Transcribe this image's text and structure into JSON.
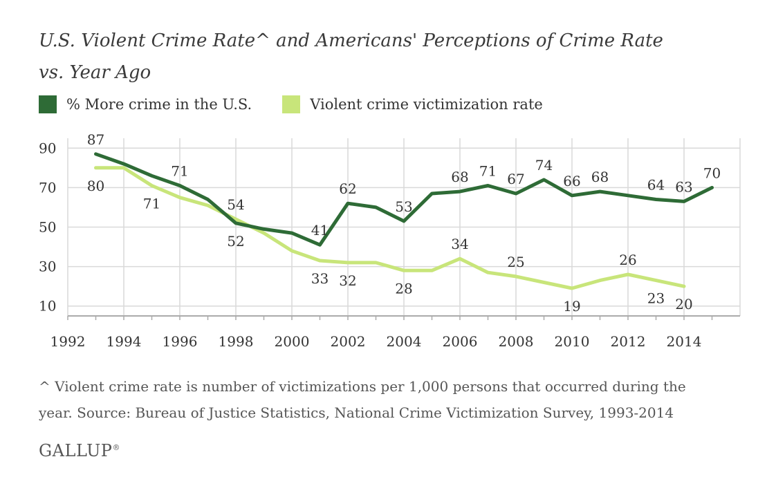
{
  "title_line1": "U.S. Violent Crime Rate^ and Americans' Perceptions of Crime Rate",
  "title_line2": "vs. Year Ago",
  "footnote_line1": "^ Violent crime rate is number of victimizations per 1,000 persons that occurred during the",
  "footnote_line2": "year. Source: Bureau of Justice Statistics, National Crime Victimization Survey, 1993-2014",
  "logo": "GALLUP",
  "logo_mark": "®",
  "colors": {
    "dark_green": "#2e6b36",
    "light_green": "#c8e57a",
    "grid": "#d9d9d9",
    "text": "#333333"
  },
  "chart_data": {
    "type": "line",
    "xlim": [
      1992,
      2016
    ],
    "ylim": [
      5,
      95
    ],
    "x_ticks": [
      "1992",
      "1994",
      "1996",
      "1998",
      "2000",
      "2002",
      "2004",
      "2006",
      "2008",
      "2010",
      "2012",
      "2014"
    ],
    "y_ticks": [
      "10",
      "30",
      "50",
      "70",
      "90"
    ],
    "grid": true,
    "legend_position": "top-left",
    "series": [
      {
        "name": "% More crime in the U.S.",
        "color": "#2e6b36",
        "points": [
          [
            1993,
            87
          ],
          [
            1994,
            82
          ],
          [
            1995,
            76
          ],
          [
            1996,
            71
          ],
          [
            1997,
            64
          ],
          [
            1998,
            52
          ],
          [
            1999,
            49
          ],
          [
            2000,
            47
          ],
          [
            2001,
            41
          ],
          [
            2002,
            62
          ],
          [
            2003,
            60
          ],
          [
            2004,
            53
          ],
          [
            2005,
            67
          ],
          [
            2006,
            68
          ],
          [
            2007,
            71
          ],
          [
            2008,
            67
          ],
          [
            2009,
            74
          ],
          [
            2010,
            66
          ],
          [
            2011,
            68
          ],
          [
            2012,
            66
          ],
          [
            2013,
            64
          ],
          [
            2014,
            63
          ],
          [
            2015,
            70
          ]
        ],
        "labels": [
          {
            "x": 1993,
            "text": "87",
            "pos": "above"
          },
          {
            "x": 1996,
            "text": "71",
            "pos": "above"
          },
          {
            "x": 1998,
            "text": "52",
            "pos": "below"
          },
          {
            "x": 2001,
            "text": "41",
            "pos": "above"
          },
          {
            "x": 2002,
            "text": "62",
            "pos": "above"
          },
          {
            "x": 2004,
            "text": "53",
            "pos": "above"
          },
          {
            "x": 2006,
            "text": "68",
            "pos": "above"
          },
          {
            "x": 2007,
            "text": "71",
            "pos": "above"
          },
          {
            "x": 2008,
            "text": "67",
            "pos": "above"
          },
          {
            "x": 2009,
            "text": "74",
            "pos": "above"
          },
          {
            "x": 2010,
            "text": "66",
            "pos": "above"
          },
          {
            "x": 2011,
            "text": "68",
            "pos": "above"
          },
          {
            "x": 2013,
            "text": "64",
            "pos": "above"
          },
          {
            "x": 2014,
            "text": "63",
            "pos": "above"
          },
          {
            "x": 2015,
            "text": "70",
            "pos": "above"
          }
        ]
      },
      {
        "name": "Violent crime victimization rate",
        "color": "#c8e57a",
        "points": [
          [
            1993,
            80
          ],
          [
            1994,
            80
          ],
          [
            1995,
            71
          ],
          [
            1996,
            65
          ],
          [
            1997,
            61
          ],
          [
            1998,
            54
          ],
          [
            1999,
            47
          ],
          [
            2000,
            38
          ],
          [
            2001,
            33
          ],
          [
            2002,
            32
          ],
          [
            2003,
            32
          ],
          [
            2004,
            28
          ],
          [
            2005,
            28
          ],
          [
            2006,
            34
          ],
          [
            2007,
            27
          ],
          [
            2008,
            25
          ],
          [
            2009,
            22
          ],
          [
            2010,
            19
          ],
          [
            2011,
            23
          ],
          [
            2012,
            26
          ],
          [
            2013,
            23
          ],
          [
            2014,
            20
          ]
        ],
        "labels": [
          {
            "x": 1993,
            "text": "80",
            "pos": "below"
          },
          {
            "x": 1995,
            "text": "71",
            "pos": "below"
          },
          {
            "x": 1998,
            "text": "54",
            "pos": "above"
          },
          {
            "x": 2001,
            "text": "33",
            "pos": "below"
          },
          {
            "x": 2002,
            "text": "32",
            "pos": "below"
          },
          {
            "x": 2004,
            "text": "28",
            "pos": "below"
          },
          {
            "x": 2006,
            "text": "34",
            "pos": "above"
          },
          {
            "x": 2008,
            "text": "25",
            "pos": "above"
          },
          {
            "x": 2010,
            "text": "19",
            "pos": "below"
          },
          {
            "x": 2012,
            "text": "26",
            "pos": "above"
          },
          {
            "x": 2013,
            "text": "23",
            "pos": "below"
          },
          {
            "x": 2014,
            "text": "20",
            "pos": "below"
          }
        ]
      }
    ]
  }
}
